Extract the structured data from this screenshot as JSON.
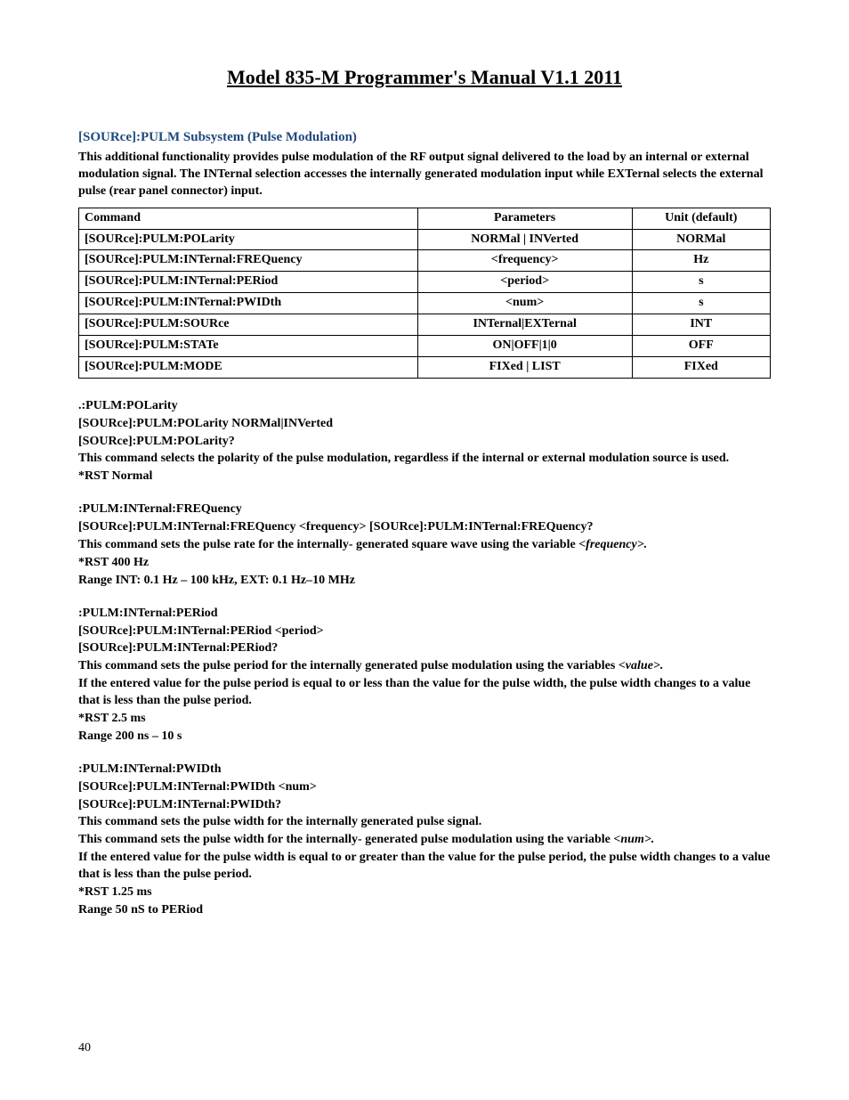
{
  "title": "Model 835-M Programmer's Manual V1.1  2011",
  "section_heading": "[SOURce]:PULM Subsystem (Pulse Modulation)",
  "intro": "This additional functionality provides pulse modulation of the RF output signal delivered to the load by an internal or external modulation signal. The INTernal selection accesses the internally generated modulation input while EXTernal selects the external pulse (rear panel connector) input.",
  "table": {
    "headers": {
      "cmd": "Command",
      "param": "Parameters",
      "unit": "Unit (default)"
    },
    "rows": [
      {
        "cmd": "[SOURce]:PULM:POLarity",
        "param": "NORMal | INVerted",
        "unit": "NORMal"
      },
      {
        "cmd": "[SOURce]:PULM:INTernal:FREQuency",
        "param": "<frequency>",
        "unit": "Hz"
      },
      {
        "cmd": "[SOURce]:PULM:INTernal:PERiod",
        "param": "<period>",
        "unit": "s"
      },
      {
        "cmd": "[SOURce]:PULM:INTernal:PWIDth",
        "param": "<num>",
        "unit": "s"
      },
      {
        "cmd": "[SOURce]:PULM:SOURce",
        "param": "INTernal|EXTernal",
        "unit": "INT"
      },
      {
        "cmd": "[SOURce]:PULM:STATe",
        "param": "ON|OFF|1|0",
        "unit": "OFF"
      },
      {
        "cmd": "[SOURce]:PULM:MODE",
        "param": "FIXed  | LIST",
        "unit": "FIXed"
      }
    ]
  },
  "blocks": {
    "pol": {
      "l1": ".:PULM:POLarity",
      "l2": "[SOURce]:PULM:POLarity NORMal|INVerted",
      "l3": "[SOURce]:PULM:POLarity?",
      "l4": "This command selects the polarity of the pulse modulation, regardless if the internal or external modulation source is used.",
      "l5": "*RST Normal"
    },
    "freq": {
      "l1": ":PULM:INTernal:FREQuency",
      "l2": "[SOURce]:PULM:INTernal:FREQuency <frequency> [SOURce]:PULM:INTernal:FREQuency?",
      "l3a": "This command sets the pulse rate for the internally- generated square wave using the variable ",
      "l3b": "<frequency>.",
      "l4": "*RST 400 Hz",
      "l5": "Range INT: 0.1 Hz – 100 kHz, EXT: 0.1 Hz–10 MHz"
    },
    "per": {
      "l1": ":PULM:INTernal:PERiod",
      "l2": "[SOURce]:PULM:INTernal:PERiod <period>",
      "l3": "[SOURce]:PULM:INTernal:PERiod?",
      "l4a": "This command sets the pulse period for the internally generated pulse modulation using the variables ",
      "l4b": "<value>.",
      "l5": "If the entered value for the pulse period is equal to or less than the value for the pulse width, the pulse width changes to a value that is less than the pulse period.",
      "l6": "*RST 2.5 ms",
      "l7": "Range 200 ns – 10 s"
    },
    "pwid": {
      "l1": ":PULM:INTernal:PWIDth",
      "l2": "[SOURce]:PULM:INTernal:PWIDth <num>",
      "l3": "[SOURce]:PULM:INTernal:PWIDth?",
      "l4": "This command sets the pulse width for the internally generated pulse signal.",
      "l5a": "This command sets the pulse width for the internally- generated pulse modulation using the variable ",
      "l5b": "<num>.",
      "l6": "If the entered value for the pulse width is equal to or greater than the value for the pulse period, the pulse width changes to a value that is less than the pulse period.",
      "l7": "*RST  1.25 ms",
      "l8": "Range 50 nS to PERiod"
    }
  },
  "page_number": "40"
}
